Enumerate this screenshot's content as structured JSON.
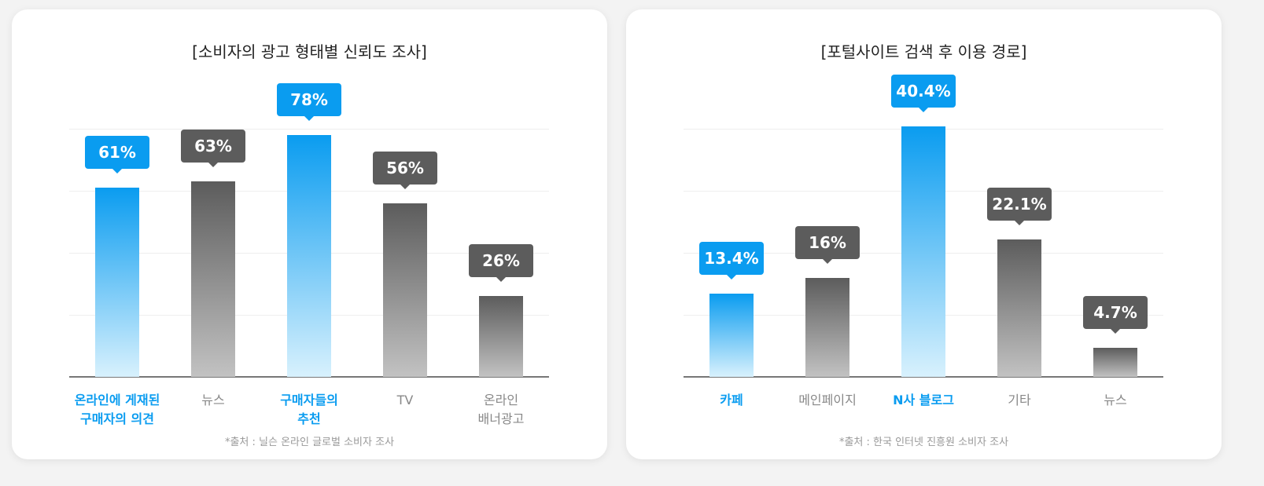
{
  "chart_data": [
    {
      "type": "bar",
      "title": "[소비자의 광고 형태별 신뢰도 조사]",
      "categories": [
        "온라인에 게재된\n구매자의 의견",
        "뉴스",
        "구매자들의\n추천",
        "TV",
        "온라인\n배너광고"
      ],
      "values": [
        61,
        63,
        78,
        56,
        26
      ],
      "value_labels": [
        "61%",
        "63%",
        "78%",
        "56%",
        "26%"
      ],
      "colors": [
        "#0a9cf0",
        "#5c5c5c",
        "#0a9cf0",
        "#5c5c5c",
        "#5c5c5c"
      ],
      "ylim": [
        0,
        80
      ],
      "yticks": [
        0,
        20,
        40,
        60,
        80
      ],
      "grid": true,
      "source": "*출처 : 닐슨 온라인 글로벌 소비자 조사"
    },
    {
      "type": "bar",
      "title": "[포털사이트 검색 후 이용 경로]",
      "categories": [
        "카페",
        "메인페이지",
        "N사 블로그",
        "기타",
        "뉴스"
      ],
      "values": [
        13.4,
        16,
        40.4,
        22.1,
        4.7
      ],
      "value_labels": [
        "13.4%",
        "16%",
        "40.4%",
        "22.1%",
        "4.7%"
      ],
      "colors": [
        "#0a9cf0",
        "#5c5c5c",
        "#0a9cf0",
        "#5c5c5c",
        "#5c5c5c"
      ],
      "ylim": [
        0,
        40
      ],
      "yticks": [
        0,
        10,
        20,
        30,
        40
      ],
      "grid": true,
      "source": "*출처 : 한국 인터넷 진흥원 소비자 조사"
    }
  ]
}
